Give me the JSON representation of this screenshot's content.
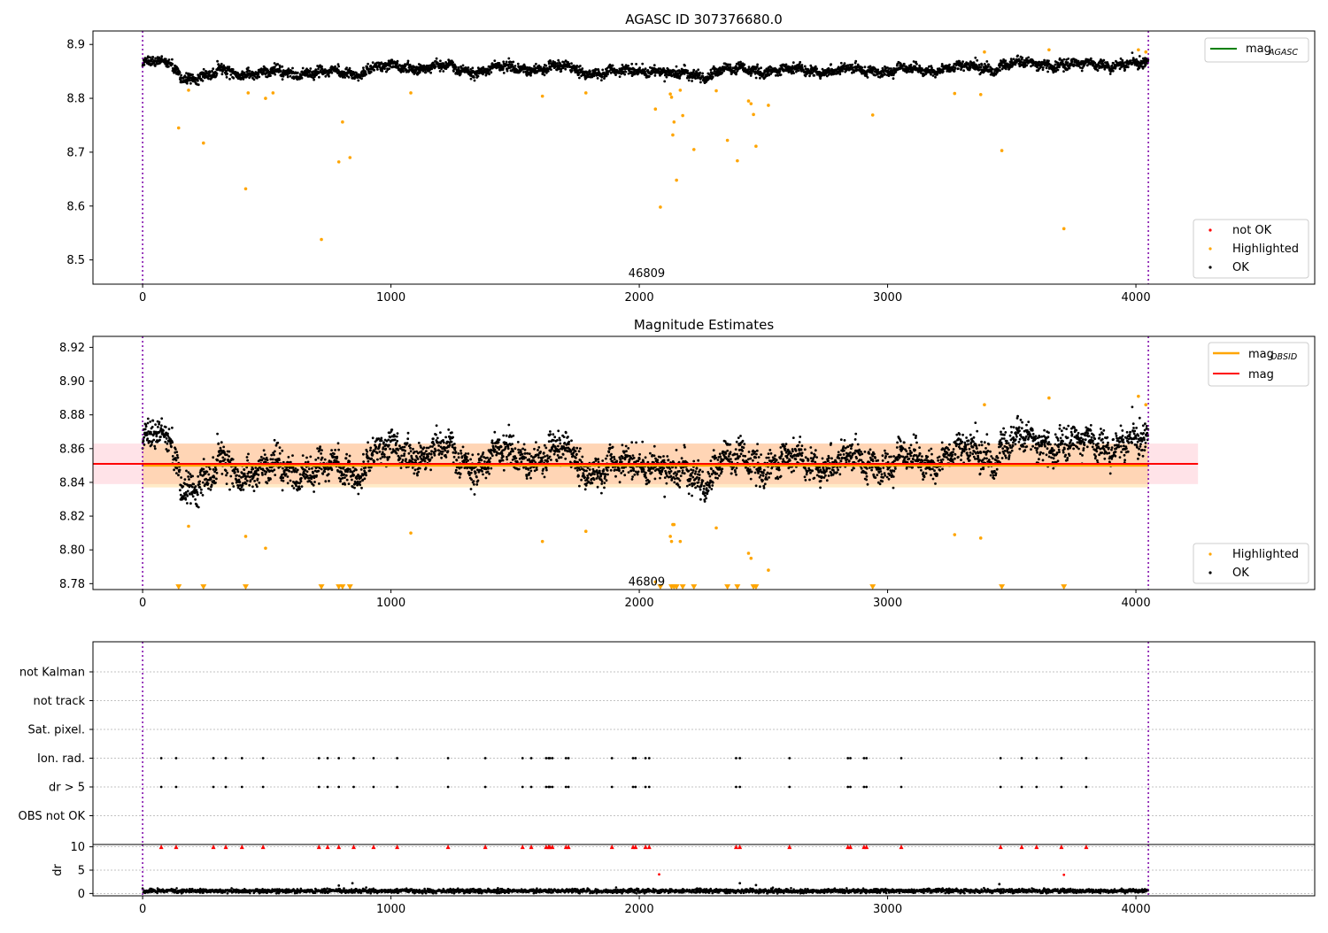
{
  "chart_data": [
    {
      "type": "scatter",
      "title": "AGASC ID 307376680.0",
      "xlim": [
        -200,
        4720
      ],
      "ylim": [
        8.455,
        8.925
      ],
      "xticks": [
        0,
        1000,
        2000,
        3000,
        4000
      ],
      "yticks": [
        8.5,
        8.6,
        8.7,
        8.8,
        8.9
      ],
      "annotation": {
        "text": "46809",
        "x": 2030,
        "y": 8.475
      },
      "vlines": [
        0,
        4050
      ],
      "ok_band": {
        "mean": 8.852,
        "sigma": 0.012,
        "x": [
          0,
          4050
        ]
      },
      "series": [
        {
          "name": "mag_AGASC",
          "kind": "line",
          "color": "#008000"
        },
        {
          "name": "not OK",
          "kind": "points",
          "color": "#ff0000",
          "values": []
        },
        {
          "name": "Highlighted",
          "kind": "points",
          "color": "#ffa500",
          "x": [
            145,
            185,
            245,
            415,
            425,
            495,
            525,
            720,
            790,
            805,
            835,
            1080,
            1610,
            1785,
            2065,
            2085,
            2125,
            2130,
            2135,
            2140,
            2150,
            2165,
            2175,
            2220,
            2310,
            2355,
            2395,
            2440,
            2450,
            2460,
            2470,
            2520,
            2940,
            3270,
            3375,
            3390,
            3460,
            3650,
            3710,
            4010,
            4040
          ],
          "y": [
            8.745,
            8.815,
            8.717,
            8.632,
            8.81,
            8.8,
            8.81,
            8.538,
            8.682,
            8.756,
            8.69,
            8.81,
            8.804,
            8.81,
            8.78,
            8.598,
            8.808,
            8.802,
            8.732,
            8.756,
            8.648,
            8.815,
            8.768,
            8.705,
            8.814,
            8.722,
            8.684,
            8.795,
            8.79,
            8.77,
            8.711,
            8.787,
            8.769,
            8.809,
            8.807,
            8.886,
            8.703,
            8.89,
            8.558,
            8.89,
            8.886
          ]
        },
        {
          "name": "OK",
          "kind": "points",
          "color": "#000000"
        }
      ],
      "legends": [
        {
          "position": "upper-right",
          "entries": [
            {
              "label": "mag",
              "sub": "AGASC",
              "marker": "line",
              "color": "#008000"
            }
          ]
        },
        {
          "position": "lower-right",
          "entries": [
            {
              "label": "not OK",
              "marker": "dot",
              "color": "#ff0000"
            },
            {
              "label": "Highlighted",
              "marker": "dot",
              "color": "#ffa500"
            },
            {
              "label": "OK",
              "marker": "dot",
              "color": "#000000"
            }
          ]
        }
      ]
    },
    {
      "type": "scatter",
      "title": "Magnitude Estimates",
      "xlim": [
        -200,
        4720
      ],
      "ylim": [
        8.7765,
        8.9265
      ],
      "xticks": [
        0,
        1000,
        2000,
        3000,
        4000
      ],
      "yticks": [
        8.78,
        8.8,
        8.82,
        8.84,
        8.86,
        8.88,
        8.9,
        8.92
      ],
      "annotation": {
        "text": "46809",
        "x": 2030,
        "y": 8.781
      },
      "vlines": [
        0,
        4050
      ],
      "mag": {
        "value": 8.851,
        "std": 0.012,
        "color": "#ff0000",
        "x": [
          -200,
          4250
        ]
      },
      "mag_obsid": {
        "value": 8.85,
        "std": 0.013,
        "color": "#ffa500",
        "x": [
          0,
          4050
        ]
      },
      "series": [
        {
          "name": "Highlighted",
          "kind": "points",
          "color": "#ffa500",
          "x": [
            185,
            415,
            495,
            1080,
            1610,
            1785,
            2065,
            2125,
            2130,
            2135,
            2140,
            2165,
            2310,
            2440,
            2450,
            2520,
            3270,
            3375,
            3390,
            3650,
            4010,
            4040
          ],
          "y": [
            8.814,
            8.808,
            8.801,
            8.81,
            8.805,
            8.811,
            8.781,
            8.808,
            8.805,
            8.815,
            8.815,
            8.805,
            8.813,
            8.798,
            8.795,
            8.788,
            8.809,
            8.807,
            8.886,
            8.89,
            8.891,
            8.886
          ]
        },
        {
          "name": "Highlighted (below range)",
          "kind": "triangles",
          "color": "#ffa500",
          "x": [
            145,
            245,
            415,
            720,
            790,
            805,
            835,
            2085,
            2130,
            2140,
            2150,
            2175,
            2220,
            2355,
            2395,
            2460,
            2470,
            2940,
            3460,
            3710
          ],
          "y": [
            8.778,
            8.778,
            8.778,
            8.778,
            8.778,
            8.778,
            8.778,
            8.778,
            8.778,
            8.778,
            8.778,
            8.778,
            8.778,
            8.778,
            8.778,
            8.778,
            8.778,
            8.778,
            8.778,
            8.778
          ]
        },
        {
          "name": "OK",
          "kind": "points",
          "color": "#000000"
        }
      ],
      "legends": [
        {
          "position": "upper-right",
          "entries": [
            {
              "label": "mag",
              "sub": "OBSID",
              "marker": "line",
              "color": "#ffa500"
            },
            {
              "label": "mag",
              "sub": "",
              "marker": "line",
              "color": "#ff0000"
            }
          ]
        },
        {
          "position": "lower-right",
          "entries": [
            {
              "label": "Highlighted",
              "marker": "dot",
              "color": "#ffa500"
            },
            {
              "label": "OK",
              "marker": "dot",
              "color": "#000000"
            }
          ]
        }
      ]
    },
    {
      "type": "scatter",
      "title": "",
      "xlim": [
        -200,
        4720
      ],
      "ylabels": [
        "not Kalman",
        "not track",
        "Sat. pixel.",
        "Ion. rad.",
        "dr > 5",
        "OBS not OK"
      ],
      "flag_rows": [
        "Ion. rad.",
        "dr > 5"
      ],
      "flag_x": [
        75,
        135,
        285,
        335,
        400,
        485,
        710,
        745,
        790,
        850,
        930,
        1025,
        1230,
        1380,
        1530,
        1565,
        1625,
        1635,
        1640,
        1650,
        1705,
        1715,
        1890,
        1975,
        1985,
        2025,
        2040,
        2390,
        2405,
        2605,
        2840,
        2850,
        2905,
        2915,
        3055,
        3455,
        3540,
        3600,
        3700,
        3800
      ],
      "vlines": [
        0,
        4050
      ]
    },
    {
      "type": "scatter",
      "title": "",
      "ylabel": "dr",
      "xlim": [
        -200,
        4720
      ],
      "ylim": [
        -0.5,
        10.5
      ],
      "xticks": [
        0,
        1000,
        2000,
        3000,
        4000
      ],
      "yticks": [
        0,
        5,
        10
      ],
      "flag_level": 10,
      "outliers": {
        "x": [
          790,
          845,
          2080,
          2405,
          2470,
          3450,
          3710
        ],
        "y": [
          1.7,
          2.2,
          4.1,
          2.2,
          1.8,
          2.0,
          4.0
        ]
      },
      "vlines": [
        0,
        4050
      ]
    }
  ]
}
